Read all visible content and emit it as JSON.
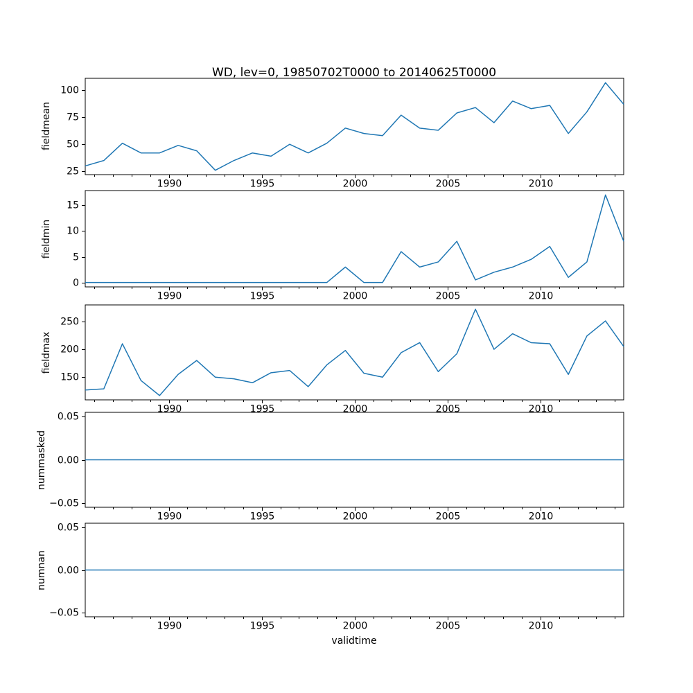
{
  "title": "WD, lev=0, 19850702T0000 to 20140625T0000",
  "chart_data": {
    "type": "line",
    "title": "WD, lev=0, 19850702T0000 to 20140625T0000",
    "xlabel": "validtime",
    "line_color": "#1f77b4",
    "axis_color": "#000000",
    "background_color": "#ffffff",
    "legend": "none",
    "grid": false,
    "xlim": [
      1985.5,
      2014.48
    ],
    "xticks": {
      "values": [
        1990,
        1995,
        2000,
        2005,
        2010
      ],
      "labels": [
        "1990",
        "1995",
        "2000",
        "2005",
        "2010"
      ]
    },
    "x_minor_tick_step_years": 1,
    "x": [
      1985.5,
      1986.5,
      1987.5,
      1988.5,
      1989.5,
      1990.5,
      1991.5,
      1992.5,
      1993.5,
      1994.5,
      1995.5,
      1996.5,
      1997.5,
      1998.5,
      1999.5,
      2000.5,
      2001.5,
      2002.5,
      2003.5,
      2004.5,
      2005.5,
      2006.5,
      2007.5,
      2008.5,
      2009.5,
      2010.5,
      2011.5,
      2012.5,
      2013.5,
      2014.48
    ],
    "subplots": [
      {
        "ylabel": "fieldmean",
        "ylim": [
          21.95,
          111.05
        ],
        "yticks": {
          "values": [
            25,
            50,
            75,
            100
          ],
          "labels": [
            "25",
            "50",
            "75",
            "100"
          ]
        },
        "values": [
          30,
          35,
          51,
          42,
          42,
          49,
          44,
          26,
          35,
          42,
          39,
          50,
          42,
          51,
          65,
          60,
          58,
          77,
          65,
          63,
          79,
          84,
          70,
          90,
          83,
          86,
          60,
          80,
          107,
          87
        ]
      },
      {
        "ylabel": "fieldmin",
        "ylim": [
          -0.85,
          17.85
        ],
        "yticks": {
          "values": [
            0,
            5,
            10,
            15
          ],
          "labels": [
            "0",
            "5",
            "10",
            "15"
          ]
        },
        "values": [
          0,
          0,
          0,
          0,
          0,
          0,
          0,
          0,
          0,
          0,
          0,
          0,
          0,
          0,
          3,
          0,
          0,
          6,
          3,
          4,
          8,
          0.5,
          2,
          3,
          4.5,
          7,
          1,
          4,
          17,
          8
        ]
      },
      {
        "ylabel": "fieldmax",
        "ylim": [
          109.25,
          279.75
        ],
        "yticks": {
          "values": [
            150,
            200,
            250
          ],
          "labels": [
            "150",
            "200",
            "250"
          ]
        },
        "values": [
          127,
          129,
          210,
          144,
          117,
          155,
          180,
          150,
          147,
          140,
          158,
          162,
          133,
          172,
          198,
          157,
          150,
          194,
          212,
          160,
          192,
          272,
          200,
          228,
          212,
          210,
          155,
          224,
          251,
          205
        ]
      },
      {
        "ylabel": "nummasked",
        "ylim": [
          -0.055,
          0.055
        ],
        "yticks": {
          "values": [
            -0.05,
            0,
            0.05
          ],
          "labels": [
            "−0.05",
            "0.00",
            "0.05"
          ]
        },
        "values": [
          0,
          0,
          0,
          0,
          0,
          0,
          0,
          0,
          0,
          0,
          0,
          0,
          0,
          0,
          0,
          0,
          0,
          0,
          0,
          0,
          0,
          0,
          0,
          0,
          0,
          0,
          0,
          0,
          0,
          0
        ]
      },
      {
        "ylabel": "numnan",
        "ylim": [
          -0.055,
          0.055
        ],
        "yticks": {
          "values": [
            -0.05,
            0,
            0.05
          ],
          "labels": [
            "−0.05",
            "0.00",
            "0.05"
          ]
        },
        "values": [
          0,
          0,
          0,
          0,
          0,
          0,
          0,
          0,
          0,
          0,
          0,
          0,
          0,
          0,
          0,
          0,
          0,
          0,
          0,
          0,
          0,
          0,
          0,
          0,
          0,
          0,
          0,
          0,
          0,
          0
        ]
      }
    ]
  }
}
